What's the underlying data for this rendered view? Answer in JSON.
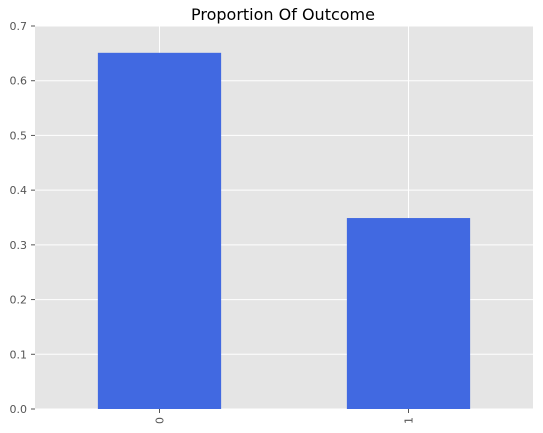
{
  "chart_data": {
    "type": "bar",
    "title": "Proportion Of Outcome",
    "xlabel": "",
    "ylabel": "",
    "categories": [
      "0",
      "1"
    ],
    "values": [
      0.651,
      0.349
    ],
    "ylim": [
      0,
      0.7
    ],
    "yticks": [
      "0.0",
      "0.1",
      "0.2",
      "0.3",
      "0.4",
      "0.5",
      "0.6",
      "0.7"
    ],
    "grid": true,
    "xtick_rotation": 90,
    "bar_color": "#4169e1",
    "plot_background": "#e5e5e5",
    "grid_color": "#ffffff"
  }
}
